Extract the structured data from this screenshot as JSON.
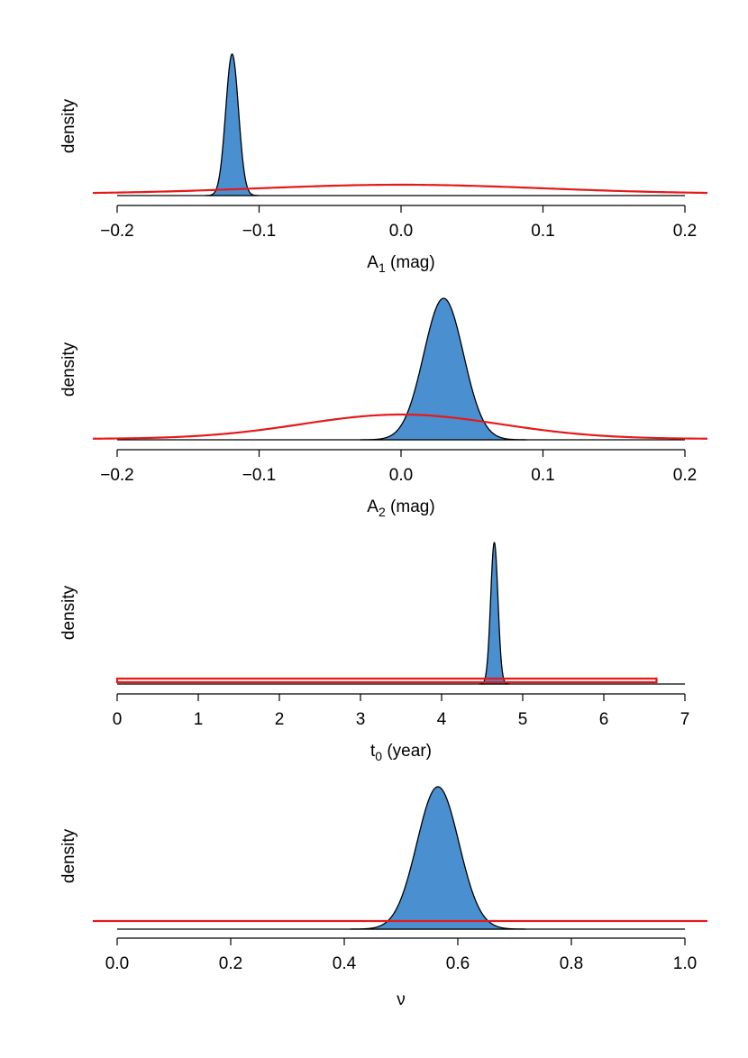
{
  "chart_data": [
    {
      "type": "area",
      "xlabel": "A",
      "xlabel_sub": "1",
      "xlabel_unit": " (mag)",
      "ylabel": "density",
      "xlim": [
        -0.2,
        0.2
      ],
      "ticks": [
        -0.2,
        -0.1,
        0.0,
        0.1,
        0.2
      ],
      "tick_labels": [
        "−0.2",
        "−0.1",
        "0.0",
        "0.1",
        "0.2"
      ],
      "posterior": {
        "kind": "gaussian",
        "mean": -0.119,
        "sd": 0.0045,
        "color": "#4a8fcf"
      },
      "prior": {
        "kind": "gaussian",
        "mean": 0.0,
        "sd": 0.1,
        "color": "#e41a1c"
      }
    },
    {
      "type": "area",
      "xlabel": "A",
      "xlabel_sub": "2",
      "xlabel_unit": " (mag)",
      "ylabel": "density",
      "xlim": [
        -0.2,
        0.2
      ],
      "ticks": [
        -0.2,
        -0.1,
        0.0,
        0.1,
        0.2
      ],
      "tick_labels": [
        "−0.2",
        "−0.1",
        "0.0",
        "0.1",
        "0.2"
      ],
      "posterior": {
        "kind": "gaussian",
        "mean": 0.03,
        "sd": 0.014,
        "color": "#4a8fcf"
      },
      "prior": {
        "kind": "gaussian",
        "mean": 0.0,
        "sd": 0.07,
        "color": "#e41a1c"
      }
    },
    {
      "type": "area",
      "xlabel": "t",
      "xlabel_sub": "0",
      "xlabel_unit": " (year)",
      "ylabel": "density",
      "xlim": [
        0,
        7
      ],
      "ticks": [
        0,
        1,
        2,
        3,
        4,
        5,
        6,
        7
      ],
      "tick_labels": [
        "0",
        "1",
        "2",
        "3",
        "4",
        "5",
        "6",
        "7"
      ],
      "posterior": {
        "kind": "gaussian",
        "mean": 4.65,
        "sd": 0.045,
        "color": "#4a8fcf"
      },
      "prior": {
        "kind": "uniform",
        "min": 0,
        "max": 6.65,
        "color": "#e41a1c"
      }
    },
    {
      "type": "area",
      "xlabel": "ν",
      "xlabel_sub": "",
      "xlabel_unit": "",
      "ylabel": "density",
      "xlim": [
        0.0,
        1.0
      ],
      "ticks": [
        0.0,
        0.2,
        0.4,
        0.6,
        0.8,
        1.0
      ],
      "tick_labels": [
        "0.0",
        "0.2",
        "0.4",
        "0.6",
        "0.8",
        "1.0"
      ],
      "posterior": {
        "kind": "gaussian",
        "mean": 0.565,
        "sd": 0.037,
        "color": "#4a8fcf"
      },
      "prior": {
        "kind": "uniform",
        "min": 0.0,
        "max": 1.0,
        "color": "#e41a1c"
      }
    }
  ]
}
